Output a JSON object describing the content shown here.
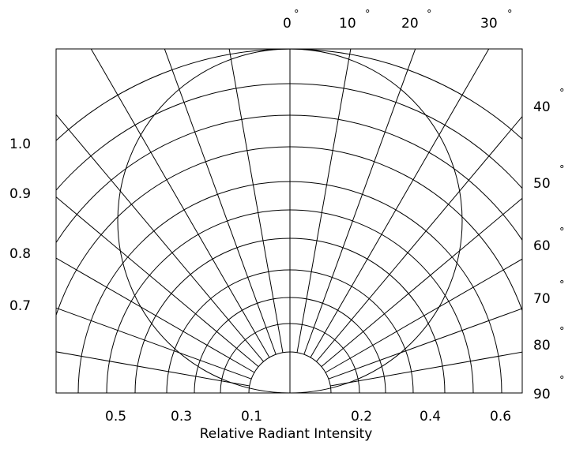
{
  "chart_data": {
    "type": "polar",
    "title": "",
    "xlabel": "Relative Radiant Intensity",
    "ylabel": "",
    "angle_unit": "°",
    "angle_ticks": [
      "0",
      "10",
      "20",
      "30",
      "40",
      "50",
      "60",
      "70",
      "80",
      "90"
    ],
    "left_scale_labels": [
      "1.0",
      "0.9",
      "0.8",
      "0.7"
    ],
    "bottom_scale_labels": [
      "0.5",
      "0.3",
      "0.1",
      "0.2",
      "0.4",
      "0.6"
    ],
    "radial_grid_values": [
      0.1,
      0.2,
      0.3,
      0.4,
      0.5,
      0.6,
      0.7,
      0.8,
      0.9,
      1.0
    ],
    "angular_grid_step_deg": 10,
    "pattern_curve": "circle tangent to the emitter at 0 and reaching 1.0 on the 0° axis",
    "grid": true,
    "legend": "none"
  }
}
